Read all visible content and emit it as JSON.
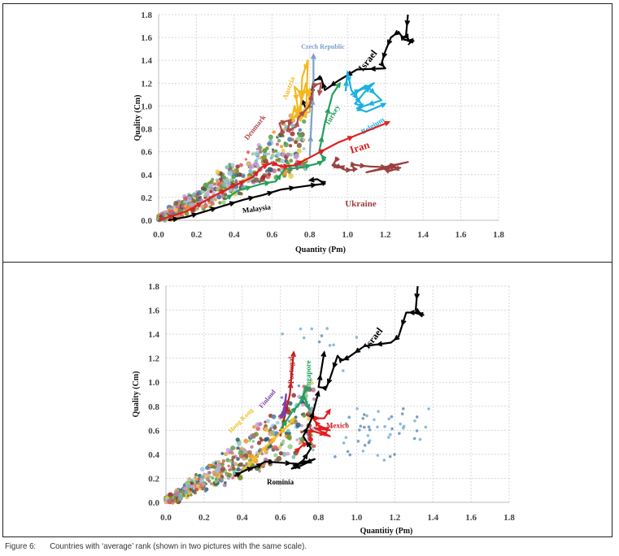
{
  "caption": {
    "label": "Figure 6:",
    "text": "Countries with ‘average’ rank (shown in two pictures with the same scale)."
  },
  "chart_data": [
    {
      "type": "scatter",
      "title": "",
      "xlabel": "Quantity (Pm)",
      "ylabel": "Quality (Cm)",
      "xlim": [
        0,
        1.8
      ],
      "ylim": [
        0,
        1.8
      ],
      "xticks": [
        "0.0",
        "0.2",
        "0.4",
        "0.6",
        "0.8",
        "1.0",
        "1.2",
        "1.4",
        "1.6",
        "1.8"
      ],
      "yticks": [
        "0.0",
        "0.2",
        "0.4",
        "0.6",
        "0.8",
        "1.0",
        "1.2",
        "1.4",
        "1.6",
        "1.8"
      ],
      "grid": true,
      "series": [
        {
          "name": "Israel",
          "color": "#000000",
          "label_at": [
            1.12,
            1.38
          ],
          "label_rot": -52,
          "label_size": 12,
          "points": [
            [
              1.32,
              1.8
            ],
            [
              1.31,
              1.62
            ],
            [
              1.33,
              1.56
            ],
            [
              1.35,
              1.57
            ],
            [
              1.3,
              1.58
            ],
            [
              1.27,
              1.65
            ],
            [
              1.23,
              1.6
            ],
            [
              1.2,
              1.48
            ],
            [
              1.18,
              1.37
            ],
            [
              1.2,
              1.33
            ],
            [
              1.05,
              1.32
            ],
            [
              0.95,
              1.22
            ],
            [
              0.88,
              1.14
            ],
            [
              0.86,
              1.25
            ],
            [
              0.82,
              1.22
            ],
            [
              0.8,
              1.0
            ],
            [
              0.78,
              0.98
            ],
            [
              0.76,
              1.05
            ]
          ]
        },
        {
          "name": "Czech Republic",
          "color": "#7aa0cc",
          "label_at": [
            0.87,
            1.5
          ],
          "label_rot": 0,
          "label_size": 8,
          "points": [
            [
              0.8,
              0.56
            ],
            [
              0.81,
              0.9
            ],
            [
              0.82,
              1.2
            ],
            [
              0.82,
              1.45
            ]
          ]
        },
        {
          "name": "Austria",
          "color": "#f2b81f",
          "label_at": [
            0.7,
            1.15
          ],
          "label_rot": -70,
          "label_size": 9,
          "points": [
            [
              0.7,
              0.85
            ],
            [
              0.72,
              1.0
            ],
            [
              0.74,
              0.88
            ],
            [
              0.76,
              1.1
            ],
            [
              0.72,
              1.17
            ],
            [
              0.74,
              0.95
            ],
            [
              0.78,
              0.9
            ],
            [
              0.79,
              1.4
            ],
            [
              0.76,
              1.25
            ],
            [
              0.75,
              0.87
            ],
            [
              0.8,
              1.05
            ],
            [
              0.78,
              1.2
            ],
            [
              0.75,
              1.0
            ],
            [
              0.72,
              0.9
            ],
            [
              0.8,
              0.95
            ],
            [
              0.8,
              1.15
            ]
          ]
        },
        {
          "name": "Denmark",
          "color": "#b04a4a",
          "label_at": [
            0.52,
            0.8
          ],
          "label_rot": -52,
          "label_size": 9,
          "points": [
            [
              0.66,
              0.74
            ],
            [
              0.64,
              0.85
            ],
            [
              0.7,
              0.88
            ],
            [
              0.68,
              0.78
            ],
            [
              0.73,
              0.82
            ],
            [
              0.74,
              0.9
            ],
            [
              0.8,
              1.0
            ],
            [
              0.82,
              1.18
            ],
            [
              0.86,
              1.2
            ],
            [
              0.85,
              1.1
            ]
          ]
        },
        {
          "name": "Turkey",
          "color": "#22a05a",
          "label_at": [
            0.93,
            0.91
          ],
          "label_rot": -60,
          "label_size": 9,
          "points": [
            [
              0.35,
              0.18
            ],
            [
              0.42,
              0.26
            ],
            [
              0.55,
              0.32
            ],
            [
              0.62,
              0.34
            ],
            [
              0.67,
              0.45
            ],
            [
              0.75,
              0.46
            ],
            [
              0.85,
              0.5
            ],
            [
              0.88,
              0.53
            ],
            [
              0.85,
              0.6
            ],
            [
              0.88,
              0.85
            ],
            [
              0.92,
              1.1
            ],
            [
              0.96,
              1.2
            ]
          ]
        },
        {
          "name": "Belgium",
          "color": "#1ab0e0",
          "label_at": [
            1.14,
            0.81
          ],
          "label_rot": -32,
          "label_size": 9,
          "points": [
            [
              0.99,
              1.13
            ],
            [
              1.0,
              1.3
            ],
            [
              1.02,
              1.14
            ],
            [
              1.08,
              1.0
            ],
            [
              1.04,
              1.02
            ],
            [
              1.09,
              1.12
            ],
            [
              1.14,
              1.2
            ],
            [
              1.02,
              1.1
            ],
            [
              1.1,
              1.18
            ],
            [
              1.18,
              1.05
            ],
            [
              1.05,
              0.98
            ],
            [
              1.1,
              0.95
            ],
            [
              1.2,
              1.02
            ]
          ]
        },
        {
          "name": "Iran",
          "color": "#e01e1e",
          "label_at": [
            1.07,
            0.61
          ],
          "label_rot": -18,
          "label_size": 13,
          "points": [
            [
              0.0,
              0.0
            ],
            [
              0.15,
              0.08
            ],
            [
              0.3,
              0.22
            ],
            [
              0.4,
              0.3
            ],
            [
              0.5,
              0.38
            ],
            [
              0.55,
              0.47
            ],
            [
              0.6,
              0.5
            ],
            [
              0.65,
              0.47
            ],
            [
              0.72,
              0.48
            ],
            [
              0.8,
              0.55
            ],
            [
              0.95,
              0.68
            ],
            [
              1.1,
              0.78
            ],
            [
              1.22,
              0.86
            ]
          ]
        },
        {
          "name": "Ukraine",
          "color": "#9a4040",
          "label_at": [
            1.07,
            0.12
          ],
          "label_rot": 0,
          "label_size": 11,
          "points": [
            [
              0.95,
              0.55
            ],
            [
              0.92,
              0.48
            ],
            [
              0.98,
              0.46
            ],
            [
              0.94,
              0.48
            ],
            [
              0.99,
              0.44
            ],
            [
              1.04,
              0.44
            ],
            [
              1.02,
              0.49
            ],
            [
              1.06,
              0.48
            ],
            [
              1.12,
              0.47
            ],
            [
              1.28,
              0.46
            ],
            [
              1.22,
              0.43
            ],
            [
              1.18,
              0.46
            ],
            [
              1.32,
              0.51
            ],
            [
              1.1,
              0.42
            ],
            [
              1.25,
              0.47
            ]
          ]
        },
        {
          "name": "Malaysia",
          "color": "#000000",
          "label_at": [
            0.52,
            0.08
          ],
          "label_rot": -8,
          "label_size": 9,
          "points": [
            [
              0.05,
              0.0
            ],
            [
              0.15,
              0.03
            ],
            [
              0.25,
              0.08
            ],
            [
              0.35,
              0.13
            ],
            [
              0.45,
              0.18
            ],
            [
              0.55,
              0.22
            ],
            [
              0.65,
              0.27
            ],
            [
              0.78,
              0.3
            ],
            [
              0.88,
              0.32
            ],
            [
              0.84,
              0.36
            ],
            [
              0.8,
              0.35
            ]
          ]
        }
      ]
    },
    {
      "type": "scatter",
      "title": "",
      "xlabel": "Quantitiy (Pm)",
      "ylabel": "Quality (Cm)",
      "xlim": [
        0,
        1.8
      ],
      "ylim": [
        0,
        1.8
      ],
      "xticks": [
        "0.0",
        "0.2",
        "0.4",
        "0.6",
        "0.8",
        "1.0",
        "1.2",
        "1.4",
        "1.6",
        "1.8"
      ],
      "yticks": [
        "0.0",
        "0.2",
        "0.4",
        "0.6",
        "0.8",
        "1.0",
        "1.2",
        "1.4",
        "1.6",
        "1.8"
      ],
      "grid": true,
      "series": [
        {
          "name": "Israel",
          "color": "#000000",
          "label_at": [
            1.1,
            1.35
          ],
          "label_rot": -52,
          "label_size": 12,
          "points": [
            [
              1.32,
              1.8
            ],
            [
              1.31,
              1.6
            ],
            [
              1.35,
              1.56
            ],
            [
              1.3,
              1.58
            ],
            [
              1.26,
              1.58
            ],
            [
              1.22,
              1.38
            ],
            [
              1.18,
              1.33
            ],
            [
              1.04,
              1.3
            ],
            [
              0.95,
              1.2
            ],
            [
              0.92,
              1.18
            ],
            [
              0.9,
              1.22
            ],
            [
              0.86,
              1.03
            ],
            [
              0.84,
              0.95
            ],
            [
              0.8,
              0.96
            ],
            [
              0.82,
              1.15
            ],
            [
              0.83,
              1.25
            ]
          ]
        },
        {
          "name": "Portugal",
          "color": "#c02020",
          "label_at": [
            0.67,
            1.1
          ],
          "label_rot": -90,
          "label_size": 9,
          "points": [
            [
              0.6,
              0.55
            ],
            [
              0.62,
              0.7
            ],
            [
              0.65,
              0.9
            ],
            [
              0.66,
              1.08
            ],
            [
              0.67,
              1.25
            ]
          ]
        },
        {
          "name": "Singapore",
          "color": "#22a05a",
          "label_at": [
            0.76,
            1.05
          ],
          "label_rot": -90,
          "label_size": 9,
          "points": [
            [
              0.6,
              0.6
            ],
            [
              0.66,
              0.75
            ],
            [
              0.7,
              0.82
            ],
            [
              0.74,
              0.96
            ],
            [
              0.72,
              0.9
            ],
            [
              0.75,
              0.78
            ]
          ]
        },
        {
          "name": "Finland",
          "color": "#7b3fa8",
          "label_at": [
            0.54,
            0.85
          ],
          "label_rot": -50,
          "label_size": 8,
          "points": [
            [
              0.6,
              0.7
            ],
            [
              0.62,
              0.78
            ],
            [
              0.63,
              0.9
            ],
            [
              0.62,
              0.72
            ]
          ]
        },
        {
          "name": "Hong Kong",
          "color": "#f0c020",
          "label_at": [
            0.4,
            0.67
          ],
          "label_rot": -45,
          "label_size": 8,
          "points": [
            [
              0.4,
              0.25
            ],
            [
              0.45,
              0.34
            ],
            [
              0.5,
              0.42
            ],
            [
              0.55,
              0.5
            ],
            [
              0.6,
              0.58
            ],
            [
              0.65,
              0.65
            ],
            [
              0.67,
              0.7
            ]
          ]
        },
        {
          "name": "Mexico",
          "color": "#e01e1e",
          "label_at": [
            0.9,
            0.62
          ],
          "label_rot": 0,
          "label_size": 9,
          "points": [
            [
              0.68,
              0.42
            ],
            [
              0.72,
              0.48
            ],
            [
              0.76,
              0.5
            ],
            [
              0.75,
              0.6
            ],
            [
              0.8,
              0.58
            ],
            [
              0.86,
              0.55
            ],
            [
              0.78,
              0.62
            ],
            [
              0.86,
              0.6
            ],
            [
              0.8,
              0.64
            ],
            [
              0.77,
              0.7
            ],
            [
              0.83,
              0.7
            ],
            [
              0.86,
              0.77
            ]
          ]
        },
        {
          "name": "Rominia",
          "color": "#000000",
          "label_at": [
            0.6,
            0.15
          ],
          "label_rot": 0,
          "label_size": 9,
          "points": [
            [
              0.36,
              0.22
            ],
            [
              0.42,
              0.27
            ],
            [
              0.48,
              0.3
            ],
            [
              0.52,
              0.34
            ],
            [
              0.6,
              0.33
            ],
            [
              0.7,
              0.32
            ],
            [
              0.78,
              0.36
            ],
            [
              0.7,
              0.3
            ],
            [
              0.66,
              0.28
            ],
            [
              0.72,
              0.35
            ],
            [
              0.76,
              0.45
            ],
            [
              0.72,
              0.55
            ],
            [
              0.76,
              0.68
            ],
            [
              0.78,
              0.8
            ],
            [
              0.8,
              0.92
            ]
          ]
        }
      ]
    }
  ]
}
